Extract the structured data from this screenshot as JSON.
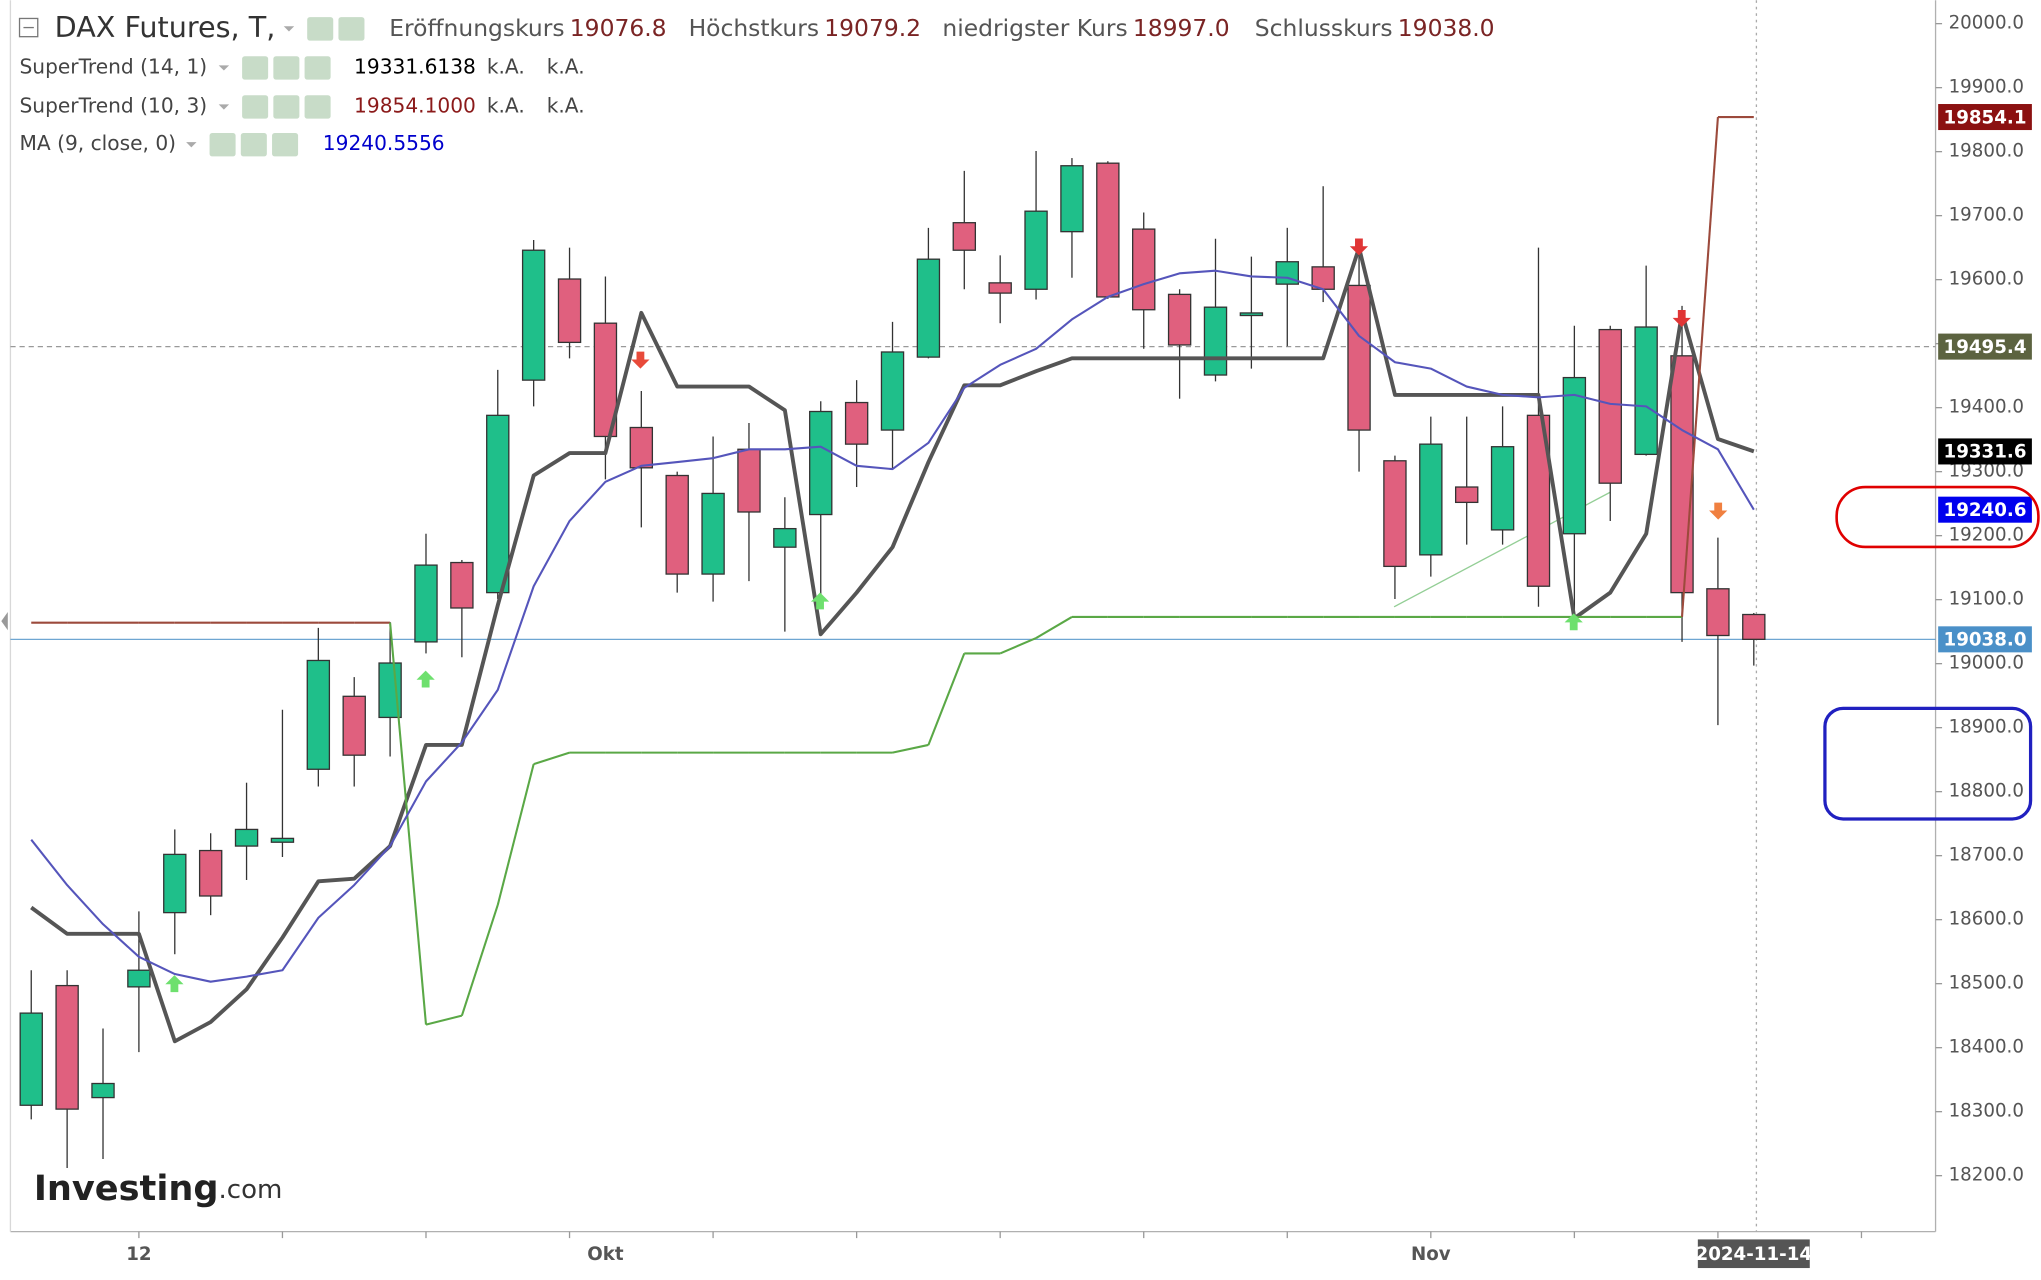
{
  "header": {
    "title": "DAX Futures, T,",
    "ohlc": [
      {
        "label": "Eröffnungskurs",
        "value": "19076.8"
      },
      {
        "label": "Höchstkurs",
        "value": "19079.2"
      },
      {
        "label": "niedrigster Kurs",
        "value": "18997.0"
      },
      {
        "label": "Schlusskurs",
        "value": "19038.0"
      }
    ]
  },
  "logo": {
    "brand": "Investing",
    "suffix": ".com"
  },
  "chart_data": {
    "type": "candlestick",
    "categories": [
      null,
      null,
      null,
      "12",
      null,
      null,
      null,
      null,
      null,
      null,
      null,
      null,
      null,
      null,
      null,
      null,
      "Okt",
      null,
      null,
      null,
      null,
      null,
      null,
      null,
      null,
      null,
      null,
      null,
      null,
      null,
      null,
      null,
      null,
      null,
      null,
      null,
      null,
      null,
      null,
      "Nov",
      null,
      null,
      null,
      null,
      null,
      null,
      null,
      null,
      "2024-11-14"
    ],
    "open": [
      18310,
      18497,
      18322,
      18495,
      18611,
      18708,
      18715,
      18721,
      18835,
      18949,
      18916,
      19034,
      19158,
      19111,
      19443,
      19601,
      19532,
      19369,
      19294,
      19140,
      19335,
      19182,
      19233,
      19408,
      19365,
      19479,
      19689,
      19595,
      19585,
      19675,
      19782,
      19679,
      19577,
      19451,
      19544,
      19593,
      19620,
      19591,
      19317,
      19170,
      19276,
      19209,
      19388,
      19203,
      19522,
      19327,
      19481,
      19117,
      19076.8
    ],
    "high": [
      18521,
      18521,
      18430,
      18613,
      18741,
      18735,
      18814,
      18928,
      19056,
      18979,
      19065,
      19203,
      19162,
      19459,
      19662,
      19650,
      19605,
      19426,
      19300,
      19355,
      19376,
      19260,
      19410,
      19443,
      19534,
      19681,
      19770,
      19638,
      19801,
      19790,
      19785,
      19705,
      19585,
      19664,
      19636,
      19681,
      19746,
      19660,
      19325,
      19386,
      19386,
      19402,
      19650,
      19528,
      19528,
      19622,
      19559,
      19197,
      19079.2
    ],
    "low": [
      18288,
      18212,
      18226,
      18393,
      18546,
      18607,
      18662,
      18698,
      18808,
      18808,
      18855,
      19016,
      19010,
      19101,
      19402,
      19477,
      19288,
      19213,
      19111,
      19097,
      19129,
      19050,
      19107,
      19276,
      19304,
      19477,
      19585,
      19532,
      19569,
      19603,
      19570,
      19492,
      19414,
      19441,
      19461,
      19496,
      19565,
      19300,
      19101,
      19136,
      19186,
      19186,
      19089,
      19060,
      19223,
      19325,
      19034,
      18904,
      18997.0
    ],
    "close": [
      18454,
      18304,
      18344,
      18521,
      18702,
      18637,
      18741,
      18727,
      19005,
      18857,
      19001,
      19154,
      19087,
      19388,
      19646,
      19502,
      19355,
      19306,
      19140,
      19266,
      19237,
      19211,
      19394,
      19343,
      19487,
      19632,
      19646,
      19579,
      19707,
      19778,
      19573,
      19553,
      19498,
      19557,
      19548,
      19628,
      19585,
      19365,
      19152,
      19343,
      19252,
      19339,
      19121,
      19447,
      19282,
      19526,
      19111,
      19044,
      19038.0
    ],
    "up_color": "#1fbf8a",
    "down_color": "#e0607e",
    "series": [
      {
        "name": "SuperTrend (14, 1)",
        "color": "#555555",
        "label_color": "#000000",
        "last_label": "19331.6138",
        "notes": [
          "k.A.",
          "k.A."
        ],
        "values": [
          18619,
          18578,
          18578,
          18578,
          18410,
          18440,
          18491,
          18572,
          18660,
          18664,
          18715,
          18873,
          18873,
          19091,
          19294,
          19329,
          19329,
          19548,
          19433,
          19433,
          19433,
          19396,
          19046,
          19111,
          19182,
          19315,
          19435,
          19435,
          19457,
          19477,
          19477,
          19477,
          19477,
          19477,
          19477,
          19477,
          19477,
          19650,
          19420,
          19420,
          19420,
          19420,
          19420,
          19071,
          19111,
          19203,
          19548,
          19351,
          19331.6138
        ]
      },
      {
        "name": "SuperTrend (10, 3)",
        "color": "#9c4a3c",
        "label_color": "#8b1a1a",
        "last_label": "19854.1000",
        "notes": [
          "k.A.",
          "k.A."
        ],
        "values": [
          19064,
          19064,
          19064,
          19064,
          19064,
          19064,
          19064,
          19064,
          19064,
          19064,
          19064,
          18436,
          18450,
          18623,
          18843,
          18861,
          18861,
          18861,
          18861,
          18861,
          18861,
          18861,
          18861,
          18861,
          18861,
          18873,
          19016,
          19016,
          19040,
          19073,
          19073,
          19073,
          19073,
          19073,
          19073,
          19073,
          19073,
          19073,
          19073,
          19073,
          19073,
          19073,
          19073,
          19073,
          19073,
          19073,
          19073,
          19854.1,
          19854.1
        ],
        "colors": [
          "#9c4a3c",
          "#9c4a3c",
          "#9c4a3c",
          "#9c4a3c",
          "#9c4a3c",
          "#9c4a3c",
          "#9c4a3c",
          "#9c4a3c",
          "#9c4a3c",
          "#9c4a3c",
          "#9c4a3c",
          "#5aa846",
          "#5aa846",
          "#5aa846",
          "#5aa846",
          "#5aa846",
          "#5aa846",
          "#5aa846",
          "#5aa846",
          "#5aa846",
          "#5aa846",
          "#5aa846",
          "#5aa846",
          "#5aa846",
          "#5aa846",
          "#5aa846",
          "#5aa846",
          "#5aa846",
          "#5aa846",
          "#5aa846",
          "#5aa846",
          "#5aa846",
          "#5aa846",
          "#5aa846",
          "#5aa846",
          "#5aa846",
          "#5aa846",
          "#5aa846",
          "#5aa846",
          "#5aa846",
          "#5aa846",
          "#5aa846",
          "#5aa846",
          "#5aa846",
          "#5aa846",
          "#5aa846",
          "#5aa846",
          "#9c4a3c",
          "#9c4a3c"
        ]
      },
      {
        "name": "MA (9, close, 0)",
        "color": "#5555bb",
        "label_color": "#0000cc",
        "last_label": "19240.5556",
        "values": [
          18725,
          18654,
          18593,
          18542,
          18515,
          18503,
          18511,
          18521,
          18603,
          18654,
          18715,
          18816,
          18877,
          18959,
          19121,
          19223,
          19284,
          19309,
          19315,
          19321,
          19335,
          19335,
          19339,
          19309,
          19304,
          19345,
          19431,
          19467,
          19492,
          19538,
          19573,
          19593,
          19610,
          19614,
          19605,
          19603,
          19585,
          19512,
          19471,
          19461,
          19433,
          19420,
          19416,
          19420,
          19406,
          19402,
          19365,
          19335,
          19240.5556
        ]
      }
    ],
    "ylim": [
      18112.6,
      20036.6
    ],
    "yticks": [
      {
        "value": 20000,
        "label": "20000.0"
      },
      {
        "value": 19900,
        "label": "19900.0"
      },
      {
        "value": 19800,
        "label": "19800.0"
      },
      {
        "value": 19700,
        "label": "19700.0"
      },
      {
        "value": 19600,
        "label": "19600.0"
      },
      {
        "value": 19500,
        "label": "19500.0"
      },
      {
        "value": 19400,
        "label": "19400.0"
      },
      {
        "value": 19300,
        "label": "19300.0"
      },
      {
        "value": 19200,
        "label": "19200.0"
      },
      {
        "value": 19100,
        "label": "19100.0"
      },
      {
        "value": 19000,
        "label": "19000.0"
      },
      {
        "value": 18900,
        "label": "18900.0"
      },
      {
        "value": 18800,
        "label": "18800.0"
      },
      {
        "value": 18700,
        "label": "18700.0"
      },
      {
        "value": 18600,
        "label": "18600.0"
      },
      {
        "value": 18500,
        "label": "18500.0"
      },
      {
        "value": 18400,
        "label": "18400.0"
      },
      {
        "value": 18300,
        "label": "18300.0"
      },
      {
        "value": 18200,
        "label": "18200.0"
      }
    ],
    "price_tags": [
      {
        "value": 19854.1,
        "label": "19854.1",
        "color": "#8b1111"
      },
      {
        "value": 19495.4,
        "label": "19495.4",
        "color": "#5c6340",
        "line": "dashed"
      },
      {
        "value": 19331.6,
        "label": "19331.6",
        "color": "#000000"
      },
      {
        "value": 19240.6,
        "label": "19240.6",
        "color": "#0000ee"
      },
      {
        "value": 19038.0,
        "label": "19038.0",
        "color": "#4a90c8",
        "line": "solid"
      }
    ]
  }
}
